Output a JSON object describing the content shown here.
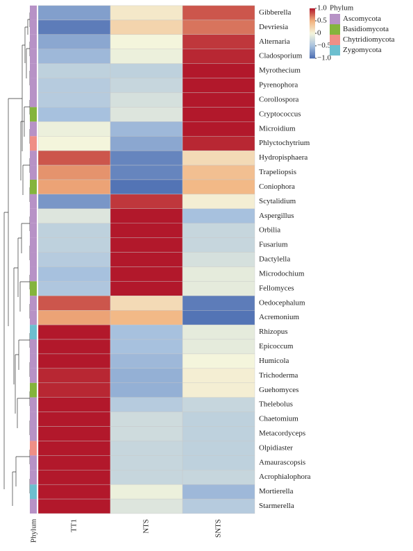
{
  "chart_data": {
    "type": "heatmap",
    "columns": [
      "TT1",
      "NTS",
      "SNTS"
    ],
    "rows": [
      "Gibberella",
      "Devriesia",
      "Alternaria",
      "Cladosporium",
      "Myrothecium",
      "Pyrenophora",
      "Corollospora",
      "Cryptococcus",
      "Microidium",
      "Phlyctochytrium",
      "Hydropisphaera",
      "Trapeliopsis",
      "Coniophora",
      "Scytalidium",
      "Aspergillus",
      "Orbilia",
      "Fusarium",
      "Dactylella",
      "Microdochium",
      "Fellomyces",
      "Oedocephalum",
      "Acremonium",
      "Rhizopus",
      "Epicoccum",
      "Humicola",
      "Trichoderma",
      "Guehomyces",
      "Thelebolus",
      "Chaetomium",
      "Metacordyceps",
      "Olpidiaster",
      "Amaurascopsis",
      "Acrophialophora",
      "Mortierella",
      "Starmerella"
    ],
    "values": [
      [
        -0.7,
        0.1,
        0.8
      ],
      [
        -0.9,
        0.25,
        0.7
      ],
      [
        -0.65,
        0,
        0.9
      ],
      [
        -0.55,
        -0.05,
        0.95
      ],
      [
        -0.35,
        -0.35,
        1
      ],
      [
        -0.4,
        -0.3,
        1
      ],
      [
        -0.4,
        -0.2,
        1
      ],
      [
        -0.5,
        -0.15,
        1
      ],
      [
        -0.05,
        -0.55,
        1
      ],
      [
        0,
        -0.65,
        0.95
      ],
      [
        0.8,
        -0.85,
        0.2
      ],
      [
        0.6,
        -0.85,
        0.4
      ],
      [
        0.55,
        -0.95,
        0.45
      ],
      [
        -0.75,
        0.9,
        0.05
      ],
      [
        -0.15,
        1,
        -0.5
      ],
      [
        -0.35,
        1,
        -0.3
      ],
      [
        -0.35,
        1,
        -0.3
      ],
      [
        -0.4,
        1,
        -0.2
      ],
      [
        -0.5,
        1,
        -0.1
      ],
      [
        -0.45,
        1,
        -0.1
      ],
      [
        0.8,
        0.2,
        -0.9
      ],
      [
        0.55,
        0.45,
        -0.95
      ],
      [
        1,
        -0.5,
        -0.1
      ],
      [
        1,
        -0.5,
        -0.1
      ],
      [
        1,
        -0.55,
        0
      ],
      [
        0.95,
        -0.6,
        0.05
      ],
      [
        0.95,
        -0.6,
        0.05
      ],
      [
        1,
        -0.4,
        -0.3
      ],
      [
        1,
        -0.25,
        -0.35
      ],
      [
        1,
        -0.25,
        -0.35
      ],
      [
        1,
        -0.3,
        -0.35
      ],
      [
        1,
        -0.3,
        -0.35
      ],
      [
        1,
        -0.3,
        -0.3
      ],
      [
        1,
        -0.05,
        -0.55
      ],
      [
        1,
        -0.15,
        -0.4
      ]
    ],
    "phylum_title": "Phylum",
    "phylum_label": "Phylum",
    "phyla": [
      {
        "name": "Ascomycota",
        "color": "#b792c6"
      },
      {
        "name": "Basidiomycota",
        "color": "#84b43c"
      },
      {
        "name": "Chytridiomycota",
        "color": "#ef8f86"
      },
      {
        "name": "Zygomycota",
        "color": "#6cbfcf"
      }
    ],
    "phylum": [
      "Ascomycota",
      "Ascomycota",
      "Ascomycota",
      "Ascomycota",
      "Ascomycota",
      "Ascomycota",
      "Ascomycota",
      "Basidiomycota",
      "Ascomycota",
      "Chytridiomycota",
      "Ascomycota",
      "Ascomycota",
      "Basidiomycota",
      "Ascomycota",
      "Ascomycota",
      "Ascomycota",
      "Ascomycota",
      "Ascomycota",
      "Ascomycota",
      "Basidiomycota",
      "Ascomycota",
      "Ascomycota",
      "Zygomycota",
      "Ascomycota",
      "Ascomycota",
      "Ascomycota",
      "Basidiomycota",
      "Ascomycota",
      "Ascomycota",
      "Ascomycota",
      "Chytridiomycota",
      "Ascomycota",
      "Ascomycota",
      "Zygomycota",
      "Ascomycota"
    ],
    "clim": [
      -1,
      1
    ],
    "cticks": [
      {
        "value": 1,
        "label": "1.0"
      },
      {
        "value": 0.5,
        "label": "0.5"
      },
      0,
      {
        "value": -0.5,
        "label": "−0.5"
      },
      {
        "value": -1,
        "label": "−1.0"
      }
    ],
    "colors": [
      "#b2182b",
      "#f2b27e",
      "#f4f5dc",
      "#a7c1de",
      "#4a6bb0"
    ]
  }
}
